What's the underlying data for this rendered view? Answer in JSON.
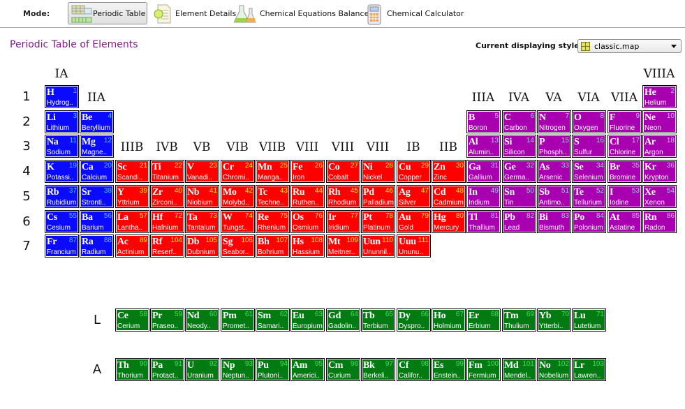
{
  "toolbar": {
    "mode_label": "Mode:",
    "buttons": [
      {
        "label": "Periodic Table",
        "icon": "table-icon",
        "active": true
      },
      {
        "label": "Element Details",
        "icon": "document-icon",
        "active": false
      },
      {
        "label": "Chemical Equations Balancer",
        "icon": "flask-icon",
        "active": false
      },
      {
        "label": "Chemical Calculator",
        "icon": "calculator-icon",
        "active": false
      }
    ]
  },
  "page_title": "Periodic Table of Elements",
  "style_selector": {
    "label": "Current displaying style:",
    "value": "classic.map"
  },
  "groups": {
    "IA": "IA",
    "IIA": "IIA",
    "IIIB": "IIIB",
    "IVB": "IVB",
    "VB": "VB",
    "VIB": "VIB",
    "VIIB": "VIIB",
    "VIII1": "VIII",
    "VIII2": "VIII",
    "VIII3": "VIII",
    "IB": "IB",
    "IIB": "IIB",
    "IIIA": "IIIA",
    "IVA": "IVA",
    "VA": "VA",
    "VIA": "VIA",
    "VIIA": "VIIA",
    "VIIIA": "VIIIA"
  },
  "periods": [
    "1",
    "2",
    "3",
    "4",
    "5",
    "6",
    "7"
  ],
  "series_labels": {
    "lanthanides": "L",
    "actinides": "A"
  },
  "colors": {
    "s": "#0a0aff",
    "d": "#ff0000",
    "p": "#a800b0",
    "f": "#047a12",
    "num_s": "#3fd0ff",
    "num_d": "#ffea00",
    "num_p": "#9fd0e0",
    "num_f": "#3ee060"
  },
  "elements": [
    [
      "1",
      "H",
      "Hydrog..",
      1,
      1,
      "s"
    ],
    [
      "2",
      "He",
      "Helium",
      1,
      18,
      "p"
    ],
    [
      "3",
      "Li",
      "Lithium",
      2,
      1,
      "s"
    ],
    [
      "4",
      "Be",
      "Beryllium",
      2,
      2,
      "s"
    ],
    [
      "5",
      "B",
      "Boron",
      2,
      13,
      "p"
    ],
    [
      "6",
      "C",
      "Carbon",
      2,
      14,
      "p"
    ],
    [
      "7",
      "N",
      "Nitrogen",
      2,
      15,
      "p"
    ],
    [
      "8",
      "O",
      "Oxygen",
      2,
      16,
      "p"
    ],
    [
      "9",
      "F",
      "Fluorine",
      2,
      17,
      "p"
    ],
    [
      "10",
      "Ne",
      "Neon",
      2,
      18,
      "p"
    ],
    [
      "11",
      "Na",
      "Sodium",
      3,
      1,
      "s"
    ],
    [
      "12",
      "Mg",
      "Magne..",
      3,
      2,
      "s"
    ],
    [
      "13",
      "Al",
      "Alumin..",
      3,
      13,
      "p"
    ],
    [
      "14",
      "Si",
      "Silicon",
      3,
      14,
      "p"
    ],
    [
      "15",
      "P",
      "Phosph..",
      3,
      15,
      "p"
    ],
    [
      "16",
      "S",
      "Sulfur",
      3,
      16,
      "p"
    ],
    [
      "17",
      "Cl",
      "Chlorine",
      3,
      17,
      "p"
    ],
    [
      "18",
      "Ar",
      "Argon",
      3,
      18,
      "p"
    ],
    [
      "19",
      "K",
      "Potassi..",
      4,
      1,
      "s"
    ],
    [
      "20",
      "Ca",
      "Calcium",
      4,
      2,
      "s"
    ],
    [
      "21",
      "Sc",
      "Scandi..",
      4,
      3,
      "d"
    ],
    [
      "22",
      "Ti",
      "Titanium",
      4,
      4,
      "d"
    ],
    [
      "23",
      "V",
      "Vanadi..",
      4,
      5,
      "d"
    ],
    [
      "24",
      "Cr",
      "Chromi..",
      4,
      6,
      "d"
    ],
    [
      "25",
      "Mn",
      "Manga..",
      4,
      7,
      "d"
    ],
    [
      "26",
      "Fe",
      "Iron",
      4,
      8,
      "d"
    ],
    [
      "27",
      "Co",
      "Cobalt",
      4,
      9,
      "d"
    ],
    [
      "28",
      "Ni",
      "Nickel",
      4,
      10,
      "d"
    ],
    [
      "29",
      "Cu",
      "Copper",
      4,
      11,
      "d"
    ],
    [
      "30",
      "Zn",
      "Zinc",
      4,
      12,
      "d"
    ],
    [
      "31",
      "Ga",
      "Gallium",
      4,
      13,
      "p"
    ],
    [
      "32",
      "Ge",
      "Germa..",
      4,
      14,
      "p"
    ],
    [
      "33",
      "As",
      "Arsenic",
      4,
      15,
      "p"
    ],
    [
      "34",
      "Se",
      "Selenium",
      4,
      16,
      "p"
    ],
    [
      "35",
      "Br",
      "Bromine",
      4,
      17,
      "p"
    ],
    [
      "36",
      "Kr",
      "Krypton",
      4,
      18,
      "p"
    ],
    [
      "37",
      "Rb",
      "Rubidium",
      5,
      1,
      "s"
    ],
    [
      "38",
      "Sr",
      "Stronti..",
      5,
      2,
      "s"
    ],
    [
      "39",
      "Y",
      "Yttrium",
      5,
      3,
      "d"
    ],
    [
      "40",
      "Zr",
      "Zirconi..",
      5,
      4,
      "d"
    ],
    [
      "41",
      "Nb",
      "Niobium",
      5,
      5,
      "d"
    ],
    [
      "42",
      "Mo",
      "Molybd..",
      5,
      6,
      "d"
    ],
    [
      "43",
      "Tc",
      "Techne..",
      5,
      7,
      "d"
    ],
    [
      "44",
      "Ru",
      "Ruthen..",
      5,
      8,
      "d"
    ],
    [
      "45",
      "Rh",
      "Rhodium",
      5,
      9,
      "d"
    ],
    [
      "46",
      "Pd",
      "Palladium",
      5,
      10,
      "d"
    ],
    [
      "47",
      "Ag",
      "Silver",
      5,
      11,
      "d"
    ],
    [
      "48",
      "Cd",
      "Cadmium",
      5,
      12,
      "d"
    ],
    [
      "49",
      "In",
      "Indium",
      5,
      13,
      "p"
    ],
    [
      "50",
      "Sn",
      "Tin",
      5,
      14,
      "p"
    ],
    [
      "51",
      "Sb",
      "Antimo..",
      5,
      15,
      "p"
    ],
    [
      "52",
      "Te",
      "Tellurium",
      5,
      16,
      "p"
    ],
    [
      "53",
      "I",
      "Iodine",
      5,
      17,
      "p"
    ],
    [
      "54",
      "Xe",
      "Xenon",
      5,
      18,
      "p"
    ],
    [
      "55",
      "Cs",
      "Cesium",
      6,
      1,
      "s"
    ],
    [
      "56",
      "Ba",
      "Barium",
      6,
      2,
      "s"
    ],
    [
      "57",
      "La",
      "Lantha..",
      6,
      3,
      "d"
    ],
    [
      "72",
      "Hf",
      "Hafnium",
      6,
      4,
      "d"
    ],
    [
      "73",
      "Ta",
      "Tantalum",
      6,
      5,
      "d"
    ],
    [
      "74",
      "W",
      "Tungst..",
      6,
      6,
      "d"
    ],
    [
      "75",
      "Re",
      "Rhenium",
      6,
      7,
      "d"
    ],
    [
      "76",
      "Os",
      "Osmium",
      6,
      8,
      "d"
    ],
    [
      "77",
      "Ir",
      "Iridium",
      6,
      9,
      "d"
    ],
    [
      "78",
      "Pt",
      "Platinum",
      6,
      10,
      "d"
    ],
    [
      "79",
      "Au",
      "Gold",
      6,
      11,
      "d"
    ],
    [
      "80",
      "Hg",
      "Mercury",
      6,
      12,
      "d"
    ],
    [
      "81",
      "Tl",
      "Thallium",
      6,
      13,
      "p"
    ],
    [
      "82",
      "Pb",
      "Lead",
      6,
      14,
      "p"
    ],
    [
      "83",
      "Bi",
      "Bismuth",
      6,
      15,
      "p"
    ],
    [
      "84",
      "Po",
      "Polonium",
      6,
      16,
      "p"
    ],
    [
      "85",
      "At",
      "Astatine",
      6,
      17,
      "p"
    ],
    [
      "86",
      "Rn",
      "Radon",
      6,
      18,
      "p"
    ],
    [
      "87",
      "Fr",
      "Francium",
      7,
      1,
      "s"
    ],
    [
      "88",
      "Ra",
      "Radium",
      7,
      2,
      "s"
    ],
    [
      "89",
      "Ac",
      "Actinium",
      7,
      3,
      "d"
    ],
    [
      "104",
      "Rf",
      "Reserf..",
      7,
      4,
      "d"
    ],
    [
      "105",
      "Db",
      "Dubnium",
      7,
      5,
      "d"
    ],
    [
      "106",
      "Sg",
      "Seabor..",
      7,
      6,
      "d"
    ],
    [
      "107",
      "Bh",
      "Bohrium",
      7,
      7,
      "d"
    ],
    [
      "108",
      "Hs",
      "Hassium",
      7,
      8,
      "d"
    ],
    [
      "109",
      "Mt",
      "Meitner..",
      7,
      9,
      "d"
    ],
    [
      "110",
      "Uun",
      "Ununnil..",
      7,
      10,
      "d"
    ],
    [
      "111",
      "Uuu",
      "Ununu..",
      7,
      11,
      "d"
    ],
    [
      "58",
      "Ce",
      "Cerium",
      "L",
      3,
      "f"
    ],
    [
      "59",
      "Pr",
      "Praseo..",
      "L",
      4,
      "f"
    ],
    [
      "60",
      "Nd",
      "Neody..",
      "L",
      5,
      "f"
    ],
    [
      "61",
      "Pm",
      "Promet..",
      "L",
      6,
      "f"
    ],
    [
      "62",
      "Sm",
      "Samari..",
      "L",
      7,
      "f"
    ],
    [
      "63",
      "Eu",
      "Europium",
      "L",
      8,
      "f"
    ],
    [
      "64",
      "Gd",
      "Gadolin..",
      "L",
      9,
      "f"
    ],
    [
      "65",
      "Tb",
      "Terbium",
      "L",
      10,
      "f"
    ],
    [
      "66",
      "Dy",
      "Dyspro..",
      "L",
      11,
      "f"
    ],
    [
      "67",
      "Ho",
      "Holmium",
      "L",
      12,
      "f"
    ],
    [
      "68",
      "Er",
      "Erbium",
      "L",
      13,
      "f"
    ],
    [
      "69",
      "Tm",
      "Thulium",
      "L",
      14,
      "f"
    ],
    [
      "70",
      "Yb",
      "Ytterbi..",
      "L",
      15,
      "f"
    ],
    [
      "71",
      "Lu",
      "Lutetium",
      "L",
      16,
      "f"
    ],
    [
      "90",
      "Th",
      "Thorium",
      "A",
      3,
      "f"
    ],
    [
      "91",
      "Pa",
      "Protact..",
      "A",
      4,
      "f"
    ],
    [
      "92",
      "U",
      "Uranium",
      "A",
      5,
      "f"
    ],
    [
      "93",
      "Np",
      "Neptun..",
      "A",
      6,
      "f"
    ],
    [
      "94",
      "Pu",
      "Plutoni..",
      "A",
      7,
      "f"
    ],
    [
      "95",
      "Am",
      "Americi..",
      "A",
      8,
      "f"
    ],
    [
      "96",
      "Cm",
      "Curium",
      "A",
      9,
      "f"
    ],
    [
      "97",
      "Bk",
      "Berkeli..",
      "A",
      10,
      "f"
    ],
    [
      "98",
      "Cf",
      "Califor..",
      "A",
      11,
      "f"
    ],
    [
      "99",
      "Es",
      "Enstein..",
      "A",
      12,
      "f"
    ],
    [
      "100",
      "Fm",
      "Fermium",
      "A",
      13,
      "f"
    ],
    [
      "101",
      "Md",
      "Mendel..",
      "A",
      14,
      "f"
    ],
    [
      "102",
      "No",
      "Nobelium",
      "A",
      15,
      "f"
    ],
    [
      "103",
      "Lr",
      "Lawren..",
      "A",
      16,
      "f"
    ]
  ]
}
